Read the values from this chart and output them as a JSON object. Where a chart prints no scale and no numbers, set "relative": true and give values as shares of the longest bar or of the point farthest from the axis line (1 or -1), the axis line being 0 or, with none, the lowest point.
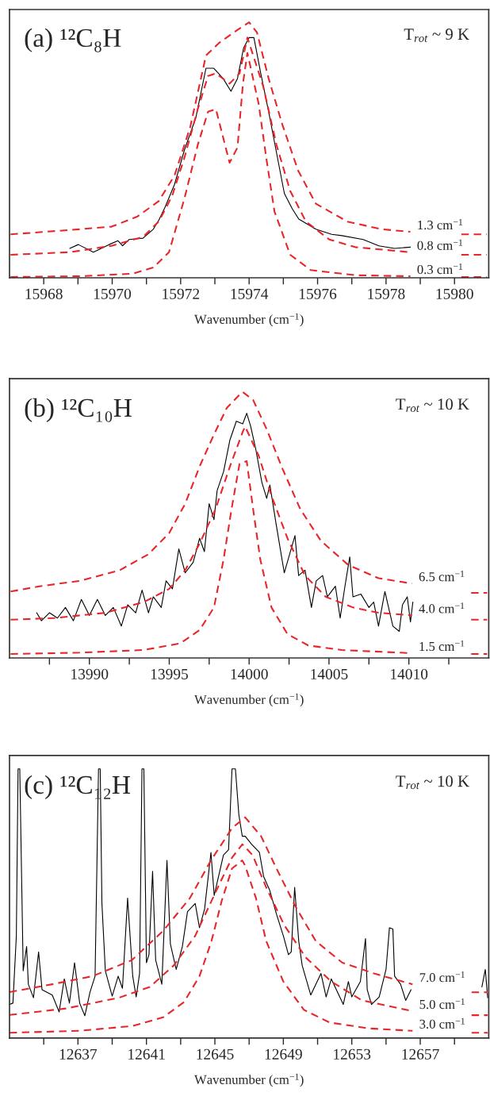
{
  "chart_data": [
    {
      "type": "line",
      "title": "(a) ¹²C₈H",
      "xlabel": "Wavenumber (cm$^{−1}$)",
      "annotations": [
        "T$_{rot}$ ~ 9 K"
      ],
      "relative": true,
      "xlim": [
        15967,
        15981
      ],
      "xticks": [
        15968,
        {
          "value": 15969,
          "label": null
        },
        15970,
        {
          "value": 15971,
          "label": null
        },
        15972,
        {
          "value": 15973,
          "label": null
        },
        15974,
        {
          "value": 15975,
          "label": null
        },
        15976,
        {
          "value": 15977,
          "label": null
        },
        15978,
        {
          "value": 15979,
          "label": null
        },
        15980
      ],
      "series": [
        {
          "color": "#000000",
          "line_style": "solid",
          "x": [
            15968.76,
            15969.01,
            15969.45,
            15969.91,
            15970.17,
            15970.3,
            15970.5,
            15970.9,
            15971.2,
            15971.36,
            15971.54,
            15971.82,
            15972.11,
            15972.44,
            15972.74,
            15972.97,
            15973.24,
            15973.47,
            15973.66,
            15973.84,
            15974.0,
            15974.14,
            15974.34,
            15974.57,
            15974.8,
            15975.03,
            15975.26,
            15975.45,
            15975.95,
            15976.41,
            15976.71,
            15977.33,
            15977.79,
            15978.25,
            15978.71
          ],
          "values": [
            0.115,
            0.13,
            0.1,
            0.13,
            0.145,
            0.125,
            0.15,
            0.155,
            0.19,
            0.225,
            0.275,
            0.365,
            0.5,
            0.625,
            0.82,
            0.82,
            0.78,
            0.73,
            0.78,
            0.9,
            0.94,
            0.94,
            0.8,
            0.65,
            0.49,
            0.33,
            0.27,
            0.23,
            0.19,
            0.17,
            0.165,
            0.15,
            0.125,
            0.115,
            0.12
          ]
        },
        {
          "name": "1.3 cm$^{−1}$",
          "color": "#e8262a",
          "line_style": "dashed",
          "x": [
            15967.03,
            15969.06,
            15969.98,
            15970.74,
            15971.36,
            15971.82,
            15972.28,
            15972.74,
            15973.13,
            15973.66,
            15974.0,
            15974.23,
            15974.57,
            15974.97,
            15975.43,
            15975.95,
            15976.87,
            15977.86,
            15978.71,
            15979.5,
            15980.2,
            15980.94
          ],
          "values": [
            0.17,
            0.19,
            0.2,
            0.24,
            0.3,
            0.4,
            0.59,
            0.87,
            0.92,
            0.97,
            1.0,
            0.96,
            0.78,
            0.6,
            0.42,
            0.29,
            0.22,
            0.19,
            0.18,
            null,
            0.17,
            0.17
          ]
        },
        {
          "name": "0.8 cm$^{−1}$",
          "color": "#e8262a",
          "line_style": "dashed",
          "x": [
            15967.03,
            15968.76,
            15969.98,
            15970.9,
            15971.36,
            15971.75,
            15972.11,
            15972.5,
            15972.8,
            15973.03,
            15973.43,
            15973.72,
            15973.95,
            15974.41,
            15974.8,
            15975.2,
            15975.66,
            15976.34,
            15977.1,
            15978.71,
            15979.5,
            15980.2,
            15980.94
          ],
          "values": [
            0.09,
            0.1,
            0.125,
            0.16,
            0.22,
            0.32,
            0.47,
            0.66,
            0.79,
            0.8,
            0.76,
            0.8,
            0.94,
            0.75,
            0.52,
            0.34,
            0.22,
            0.15,
            0.12,
            0.1,
            null,
            0.09,
            0.09
          ]
        },
        {
          "name": "0.3 cm$^{−1}$",
          "color": "#e8262a",
          "line_style": "dashed",
          "x": [
            15967.03,
            15969.06,
            15970.6,
            15971.2,
            15971.66,
            15972.11,
            15972.5,
            15972.8,
            15973.03,
            15973.43,
            15973.66,
            15973.82,
            15973.95,
            15974.28,
            15974.5,
            15974.74,
            15975.2,
            15975.8,
            15977.1,
            15978.71,
            15979.5,
            15980.2,
            15980.94
          ],
          "values": [
            0.003,
            0.006,
            0.016,
            0.04,
            0.1,
            0.31,
            0.52,
            0.65,
            0.66,
            0.45,
            0.51,
            0.76,
            0.88,
            0.68,
            0.47,
            0.26,
            0.09,
            0.03,
            0.01,
            0.006,
            null,
            0.003,
            0.003
          ]
        }
      ]
    },
    {
      "type": "line",
      "title": "(b) ¹²C₁₀H",
      "xlabel": "Wavenumber (cm$^{−1}$)",
      "annotations": [
        "T$_{rot}$ ~ 10 K"
      ],
      "relative": true,
      "xlim": [
        13985,
        14015
      ],
      "xticks": [
        {
          "value": 13987.5,
          "label": null
        },
        13990,
        {
          "value": 13992.5,
          "label": null
        },
        13995,
        {
          "value": 13997.5,
          "label": null
        },
        14000,
        {
          "value": 14002.5,
          "label": null
        },
        14005,
        {
          "value": 14007.5,
          "label": null
        },
        14010,
        {
          "value": 14012.5,
          "label": null
        }
      ],
      "series": [
        {
          "color": "#000000",
          "line_style": "solid",
          "x": [
            13986.7,
            13987.0,
            13987.5,
            13988.0,
            13988.5,
            13989.0,
            13989.5,
            13990.0,
            13990.5,
            13991.0,
            13991.5,
            13992.0,
            13992.4,
            13992.9,
            13993.3,
            13993.7,
            13994.0,
            13994.5,
            13994.8,
            13995.2,
            13995.6,
            13996.0,
            13996.5,
            13996.9,
            13997.2,
            13997.5,
            13997.8,
            13998.0,
            13998.4,
            13998.8,
            13999.2,
            13999.6,
            13999.85,
            14000.1,
            14000.4,
            14000.8,
            14001.1,
            14001.3,
            14001.7,
            14002.2,
            14002.87,
            14003.1,
            14003.5,
            14003.9,
            14004.2,
            14004.6,
            14004.9,
            14005.4,
            14005.7,
            14006.0,
            14006.3,
            14006.5,
            14007.0,
            14007.5,
            14007.8,
            14008.1,
            14008.5,
            14009.0,
            14009.4,
            14009.6,
            14009.9,
            14010.1,
            14010.25
          ],
          "values": [
            0.17,
            0.14,
            0.17,
            0.15,
            0.19,
            0.14,
            0.22,
            0.16,
            0.22,
            0.16,
            0.19,
            0.12,
            0.2,
            0.17,
            0.255,
            0.17,
            0.23,
            0.19,
            0.29,
            0.26,
            0.41,
            0.32,
            0.36,
            0.45,
            0.4,
            0.58,
            0.52,
            0.63,
            0.7,
            0.82,
            0.89,
            0.88,
            0.92,
            0.87,
            0.79,
            0.66,
            0.6,
            0.65,
            0.5,
            0.32,
            0.46,
            0.31,
            0.33,
            0.19,
            0.29,
            0.31,
            0.23,
            0.27,
            0.15,
            0.27,
            0.38,
            0.23,
            0.24,
            0.19,
            0.21,
            0.12,
            0.25,
            0.12,
            0.1,
            0.2,
            0.23,
            0.135,
            0.21
          ]
        },
        {
          "name": "6.5 cm$^{−1}$",
          "color": "#e8262a",
          "line_style": "dashed",
          "x": [
            13985.07,
            13986.95,
            13989.4,
            13991.9,
            13993.7,
            13995.0,
            13996.0,
            13996.9,
            13997.8,
            13998.6,
            13999.4,
            13999.6,
            14000.25,
            14001.1,
            14002.1,
            14003.2,
            14004.5,
            14006.2,
            14008.1,
            14010.2,
            14012.5,
            14013.9,
            14014.9
          ],
          "values": [
            0.25,
            0.27,
            0.29,
            0.33,
            0.39,
            0.47,
            0.58,
            0.72,
            0.84,
            0.94,
            0.99,
            1.0,
            0.97,
            0.86,
            0.71,
            0.56,
            0.44,
            0.35,
            0.3,
            0.28,
            null,
            0.245,
            0.245
          ]
        },
        {
          "name": "4.0 cm$^{−1}$",
          "color": "#e8262a",
          "line_style": "dashed",
          "x": [
            13985.07,
            13987.8,
            13991.0,
            13993.4,
            13995.0,
            13996.0,
            13996.9,
            13997.9,
            13998.8,
            13999.6,
            13999.75,
            14000.6,
            14001.4,
            14002.4,
            14003.5,
            14004.8,
            14006.5,
            14008.1,
            14010.2,
            14012.5,
            14013.9,
            14014.9
          ],
          "values": [
            0.144,
            0.15,
            0.17,
            0.21,
            0.26,
            0.33,
            0.43,
            0.56,
            0.72,
            0.85,
            0.87,
            0.76,
            0.61,
            0.45,
            0.31,
            0.23,
            0.19,
            0.17,
            0.16,
            null,
            0.144,
            0.144
          ]
        },
        {
          "name": "1.5 cm$^{−1}$",
          "color": "#e8262a",
          "line_style": "dashed",
          "x": [
            13985.07,
            13989.4,
            13993.4,
            13995.7,
            13996.9,
            13997.8,
            13998.4,
            13998.9,
            13999.4,
            13999.85,
            14000.25,
            14000.7,
            14001.4,
            14002.4,
            14003.7,
            14005.8,
            14010.2,
            14012.5,
            14013.9,
            14014.9
          ],
          "values": [
            0.015,
            0.02,
            0.03,
            0.055,
            0.105,
            0.19,
            0.37,
            0.56,
            0.73,
            0.74,
            0.56,
            0.37,
            0.19,
            0.09,
            0.047,
            0.03,
            0.018,
            null,
            0.015,
            0.015
          ]
        }
      ]
    },
    {
      "type": "line",
      "title": "(c) ¹²C₁₂H",
      "xlabel": "Wavenumber (cm$^{−1}$)",
      "annotations": [
        "T$_{rot}$ ~ 10 K"
      ],
      "relative": true,
      "xlim": [
        12633,
        12661
      ],
      "xticks": [
        {
          "value": 12635,
          "label": null
        },
        12637,
        {
          "value": 12639,
          "label": null
        },
        12641,
        {
          "value": 12643,
          "label": null
        },
        12645,
        {
          "value": 12647,
          "label": null
        },
        12649,
        {
          "value": 12651,
          "label": null
        },
        12653,
        {
          "value": 12655,
          "label": null
        },
        12657,
        {
          "value": 12659,
          "label": null
        }
      ],
      "series": [
        {
          "color": "#000000",
          "line_style": "solid",
          "x": [
            12633.0,
            12633.2,
            12633.4,
            12633.5,
            12633.6,
            12633.8,
            12634.0,
            12634.1,
            12634.4,
            12634.7,
            12634.9,
            12635.5,
            12635.9,
            12636.2,
            12636.5,
            12636.8,
            12637.1,
            12637.4,
            12637.7,
            12638.0,
            12638.2,
            12638.3,
            12638.4,
            12638.6,
            12639.0,
            12639.35,
            12639.6,
            12639.9,
            12640.2,
            12640.4,
            12640.6,
            12640.74,
            12640.85,
            12641.0,
            12641.15,
            12641.36,
            12641.54,
            12641.9,
            12642.2,
            12642.4,
            12642.74,
            12643.1,
            12643.4,
            12643.85,
            12644.1,
            12644.4,
            12644.77,
            12644.96,
            12645.5,
            12645.8,
            12646.0,
            12646.2,
            12646.4,
            12646.6,
            12646.77,
            12647.15,
            12647.6,
            12647.85,
            12648.2,
            12648.6,
            12649.0,
            12649.3,
            12649.46,
            12649.66,
            12649.9,
            12650.1,
            12650.6,
            12651.2,
            12651.5,
            12651.8,
            12652.5,
            12652.8,
            12653.0,
            12653.5,
            12653.8,
            12653.9,
            12654.15,
            12654.6,
            12655.0,
            12655.2,
            12655.4,
            12655.5,
            12655.85,
            12656.15,
            12656.46,
            12658.5,
            12660.6,
            12660.8,
            12660.94
          ],
          "values": [
            0.125,
            0.13,
            0.38,
            1.0,
            1.0,
            0.25,
            0.34,
            0.2,
            0.15,
            0.32,
            0.18,
            0.16,
            0.097,
            0.22,
            0.13,
            0.28,
            0.13,
            0.083,
            0.17,
            0.23,
            1.0,
            1.0,
            0.5,
            0.25,
            0.156,
            0.23,
            0.185,
            0.52,
            0.23,
            0.153,
            0.24,
            1.0,
            1.0,
            0.28,
            0.31,
            0.62,
            0.29,
            0.2,
            0.66,
            0.35,
            0.255,
            0.34,
            0.47,
            0.5,
            0.41,
            0.48,
            0.69,
            0.53,
            0.68,
            0.7,
            1.0,
            1.0,
            0.83,
            0.75,
            0.75,
            0.72,
            0.69,
            0.6,
            0.55,
            0.46,
            0.38,
            0.31,
            0.32,
            0.56,
            0.36,
            0.27,
            0.16,
            0.24,
            0.153,
            0.22,
            0.125,
            0.21,
            0.153,
            0.21,
            0.37,
            0.18,
            0.125,
            0.153,
            0.255,
            0.41,
            0.405,
            0.23,
            0.2,
            0.14,
            0.18,
            null,
            0.19,
            0.255,
            0.15
          ]
        },
        {
          "name": "7.0 cm$^{−1}$",
          "color": "#e8262a",
          "line_style": "dashed",
          "x": [
            12633.0,
            12635.5,
            12637.85,
            12640.16,
            12642.0,
            12643.54,
            12644.77,
            12646.0,
            12646.77,
            12647.7,
            12648.6,
            12649.7,
            12650.9,
            12652.45,
            12654.3,
            12656.55,
            12658.5,
            12660.0,
            12660.94
          ],
          "values": [
            0.171,
            0.2,
            0.23,
            0.29,
            0.4,
            0.52,
            0.66,
            0.78,
            0.82,
            0.75,
            0.63,
            0.49,
            0.36,
            0.28,
            0.24,
            0.2,
            null,
            0.17,
            0.17
          ]
        },
        {
          "name": "5.0 cm$^{−1}$",
          "color": "#e8262a",
          "line_style": "dashed",
          "x": [
            12633.0,
            12636.3,
            12639.4,
            12641.2,
            12642.6,
            12643.85,
            12645.1,
            12646.0,
            12646.6,
            12647.2,
            12648.0,
            12649.05,
            12650.3,
            12651.8,
            12653.6,
            12656.55,
            12658.5,
            12660.0,
            12660.94
          ],
          "values": [
            0.086,
            0.11,
            0.15,
            0.19,
            0.27,
            0.38,
            0.55,
            0.67,
            0.72,
            0.68,
            0.56,
            0.42,
            0.3,
            0.21,
            0.14,
            0.1,
            null,
            0.085,
            0.085
          ]
        },
        {
          "name": "3.0 cm$^{−1}$",
          "color": "#e8262a",
          "line_style": "dashed",
          "x": [
            12633.0,
            12637.1,
            12640.2,
            12642.0,
            12643.2,
            12644.1,
            12644.8,
            12645.4,
            12646.0,
            12646.6,
            12646.77,
            12647.4,
            12648.0,
            12649.0,
            12650.2,
            12651.7,
            12654.0,
            12656.55,
            12658.5,
            12660.0,
            12660.94
          ],
          "values": [
            0.02,
            0.027,
            0.045,
            0.078,
            0.134,
            0.23,
            0.36,
            0.51,
            0.63,
            0.66,
            0.64,
            0.52,
            0.36,
            0.21,
            0.105,
            0.058,
            0.036,
            0.027,
            null,
            0.02,
            0.02
          ]
        }
      ]
    }
  ]
}
